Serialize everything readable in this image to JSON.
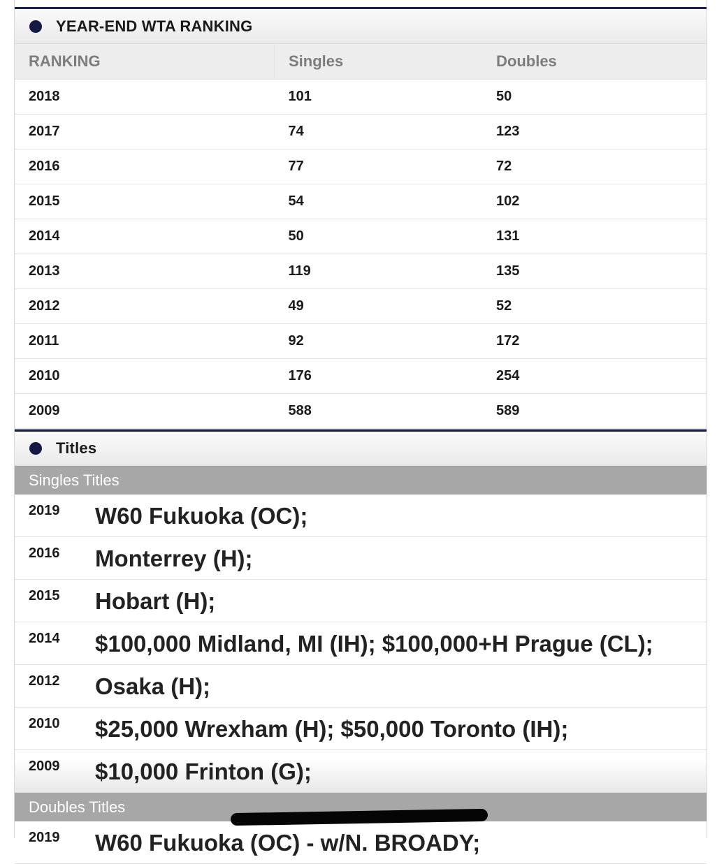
{
  "ranking": {
    "title": "YEAR-END WTA RANKING",
    "columns": [
      "RANKING",
      "Singles",
      "Doubles"
    ],
    "rows": [
      [
        "2018",
        "101",
        "50"
      ],
      [
        "2017",
        "74",
        "123"
      ],
      [
        "2016",
        "77",
        "72"
      ],
      [
        "2015",
        "54",
        "102"
      ],
      [
        "2014",
        "50",
        "131"
      ],
      [
        "2013",
        "119",
        "135"
      ],
      [
        "2012",
        "49",
        "52"
      ],
      [
        "2011",
        "92",
        "172"
      ],
      [
        "2010",
        "176",
        "254"
      ],
      [
        "2009",
        "588",
        "589"
      ]
    ]
  },
  "titles": {
    "title": "Titles",
    "singles_label": "Singles Titles",
    "singles": [
      {
        "year": "2019",
        "text": "W60 Fukuoka (OC);"
      },
      {
        "year": "2016",
        "text": "Monterrey (H);"
      },
      {
        "year": "2015",
        "text": "Hobart (H);"
      },
      {
        "year": "2014",
        "text": "$100,000 Midland, MI (IH); $100,000+H Prague (CL);"
      },
      {
        "year": "2012",
        "text": "Osaka (H);"
      },
      {
        "year": "2010",
        "text": "$25,000 Wrexham (H); $50,000 Toronto (IH);"
      },
      {
        "year": "2009",
        "text": "$10,000 Frinton (G);"
      }
    ],
    "doubles_label": "Doubles Titles",
    "doubles": [
      {
        "year": "2019",
        "text": "W60 Fukuoka (OC) - w/N. BROADY;"
      }
    ]
  },
  "colors": {
    "navy_accent": "#1b2147",
    "subheader_gray": "#a7a7a7"
  }
}
